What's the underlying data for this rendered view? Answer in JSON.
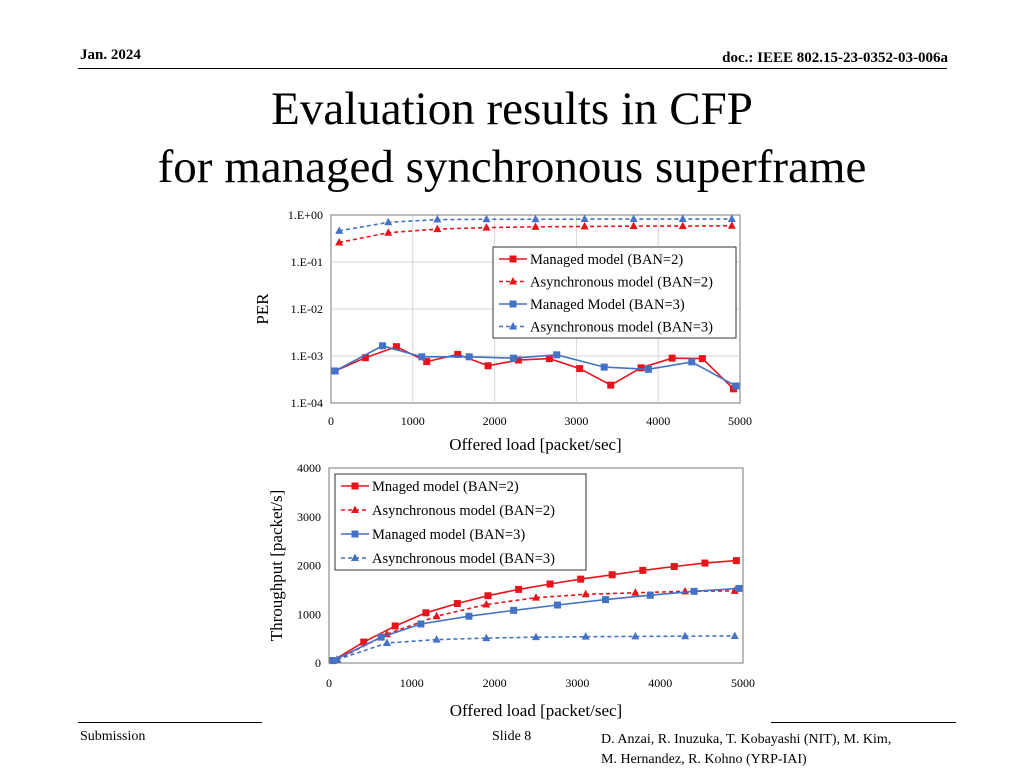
{
  "header": {
    "date": "Jan. 2024",
    "doc": "doc.: IEEE 802.15-23-0352-03-006a"
  },
  "title": {
    "line1": "Evaluation results in CFP",
    "line2": "for managed synchronous superframe"
  },
  "footer": {
    "left": "Submission",
    "center": "Slide 8",
    "right_line1": "D. Anzai, R. Inuzuka, T. Kobayashi (NIT), M. Kim,",
    "right_line2": "M. Hernandez, R. Kohno (YRP-IAI)"
  },
  "chart_data": [
    {
      "type": "line",
      "xlabel": "Offered load [packet/sec]",
      "ylabel": "PER",
      "xlim": [
        0,
        5000
      ],
      "ylim": [
        0.0001,
        1
      ],
      "yscale": "log",
      "xticks": [
        "0",
        "1000",
        "2000",
        "3000",
        "4000",
        "5000"
      ],
      "yticks": [
        "1.E-04",
        "1.E-03",
        "1.E-02",
        "1.E-01",
        "1.E+00"
      ],
      "grid": true,
      "legend_position": "right",
      "series": [
        {
          "name": "Managed model (BAN=2)",
          "color": "#e8141c",
          "marker": "square",
          "dash": false,
          "x": [
            50,
            420,
            800,
            1170,
            1550,
            1920,
            2290,
            2670,
            3040,
            3420,
            3790,
            4170,
            4540,
            4920
          ],
          "y": [
            0.00048,
            0.00092,
            0.00158,
            0.00076,
            0.00108,
            0.00062,
            0.00082,
            0.00088,
            0.00054,
            0.00024,
            0.00056,
            0.0009,
            0.00088,
            0.0002
          ]
        },
        {
          "name": "Asynchronous model (BAN=2)",
          "color": "#e8141c",
          "marker": "triangle",
          "dash": true,
          "x": [
            100,
            700,
            1300,
            1900,
            2500,
            3100,
            3700,
            4300,
            4900
          ],
          "y": [
            0.26,
            0.42,
            0.5,
            0.54,
            0.56,
            0.57,
            0.58,
            0.58,
            0.59
          ]
        },
        {
          "name": "Managed Model (BAN=3)",
          "color": "#4472c4",
          "marker": "square",
          "dash": false,
          "x": [
            50,
            630,
            1110,
            1690,
            2230,
            2760,
            3340,
            3880,
            4410,
            4950
          ],
          "y": [
            0.00048,
            0.00165,
            0.00096,
            0.00096,
            0.0009,
            0.00106,
            0.00058,
            0.00052,
            0.00075,
            0.00023
          ]
        },
        {
          "name": "Asynchronous model (BAN=3)",
          "color": "#4472c4",
          "marker": "triangle",
          "dash": true,
          "x": [
            100,
            700,
            1300,
            1900,
            2500,
            3100,
            3700,
            4300,
            4900
          ],
          "y": [
            0.46,
            0.7,
            0.8,
            0.81,
            0.81,
            0.82,
            0.82,
            0.82,
            0.82
          ]
        }
      ]
    },
    {
      "type": "line",
      "xlabel": "Offered load [packet/sec]",
      "ylabel": "Throughput [packet/s]",
      "xlim": [
        0,
        5000
      ],
      "ylim": [
        0,
        4000
      ],
      "xticks": [
        "0",
        "1000",
        "2000",
        "3000",
        "4000",
        "5000"
      ],
      "yticks": [
        "0",
        "1000",
        "2000",
        "3000",
        "4000"
      ],
      "grid": false,
      "legend_position": "top-left",
      "series": [
        {
          "name": "Mnaged model (BAN=2)",
          "color": "#e8141c",
          "marker": "square",
          "dash": false,
          "x": [
            50,
            420,
            800,
            1170,
            1550,
            1920,
            2290,
            2670,
            3040,
            3420,
            3790,
            4170,
            4540,
            4920
          ],
          "y": [
            50,
            430,
            760,
            1030,
            1220,
            1380,
            1510,
            1620,
            1720,
            1810,
            1900,
            1980,
            2050,
            2100
          ]
        },
        {
          "name": "Asynchronous model (BAN=2)",
          "color": "#e8141c",
          "marker": "triangle",
          "dash": true,
          "x": [
            100,
            700,
            1300,
            1900,
            2500,
            3100,
            3700,
            4300,
            4900
          ],
          "y": [
            70,
            590,
            960,
            1200,
            1340,
            1410,
            1440,
            1470,
            1480
          ]
        },
        {
          "name": "Managed model (BAN=3)",
          "color": "#4472c4",
          "marker": "square",
          "dash": false,
          "x": [
            50,
            630,
            1110,
            1690,
            2230,
            2760,
            3340,
            3880,
            4410,
            4950
          ],
          "y": [
            50,
            530,
            800,
            960,
            1080,
            1190,
            1300,
            1390,
            1470,
            1530
          ]
        },
        {
          "name": "Asynchronous model (BAN=3)",
          "color": "#4472c4",
          "marker": "triangle",
          "dash": true,
          "x": [
            100,
            700,
            1300,
            1900,
            2500,
            3100,
            3700,
            4300,
            4900
          ],
          "y": [
            70,
            410,
            480,
            510,
            530,
            540,
            545,
            550,
            555
          ]
        }
      ]
    }
  ]
}
